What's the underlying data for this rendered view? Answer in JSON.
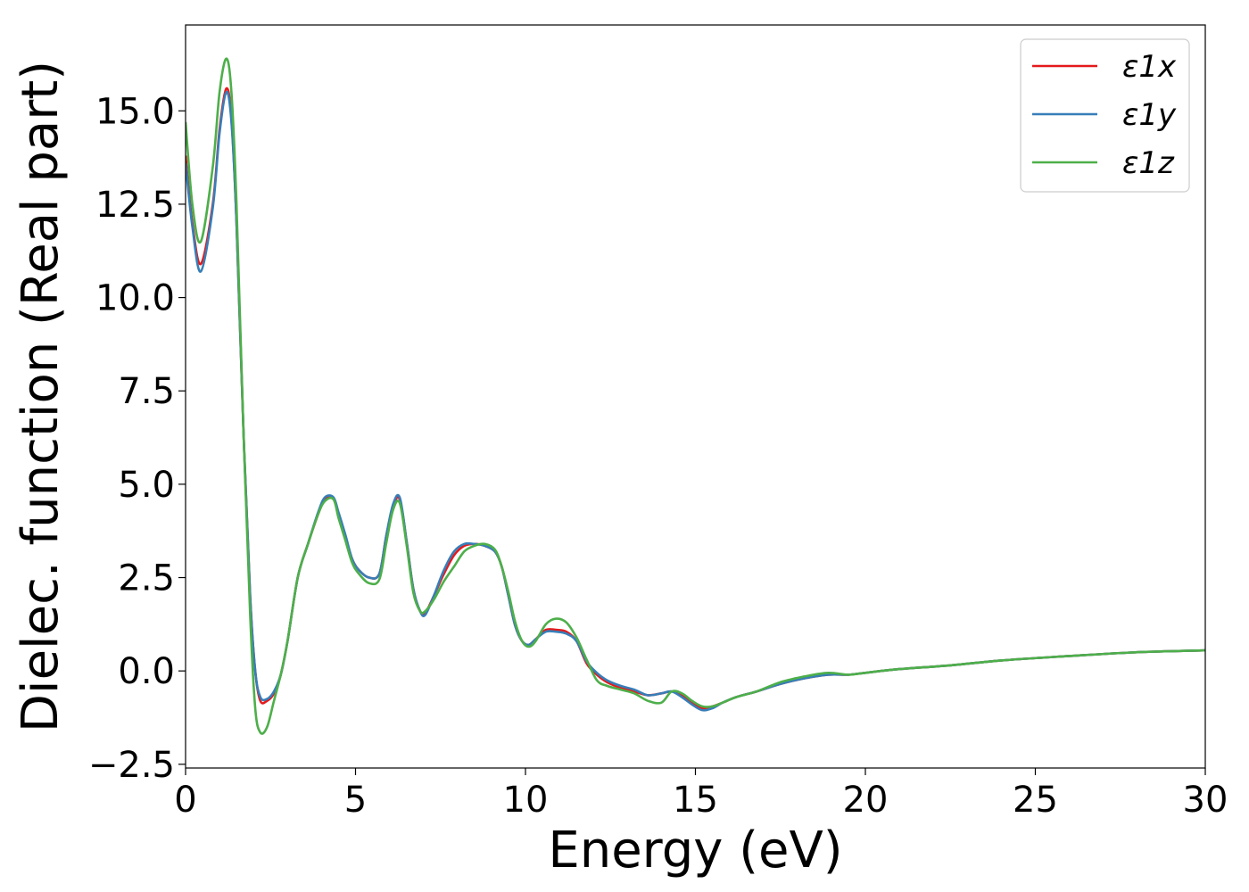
{
  "chart_data": {
    "type": "line",
    "xlabel": "Energy (eV)",
    "ylabel": "Dielec. function (Real part)",
    "xlim": [
      0,
      30
    ],
    "ylim": [
      -2.6,
      17.3
    ],
    "xticks": [
      0,
      5,
      10,
      15,
      20,
      25,
      30
    ],
    "xtick_labels": [
      "0",
      "5",
      "10",
      "15",
      "20",
      "25",
      "30"
    ],
    "yticks": [
      -2.5,
      0,
      2.5,
      5,
      7.5,
      10,
      12.5,
      15
    ],
    "ytick_labels": [
      "−2.5",
      "0.0",
      "2.5",
      "5.0",
      "7.5",
      "10.0",
      "12.5",
      "15.0"
    ],
    "grid": false,
    "legend": "top-right",
    "series": [
      {
        "name": "ε1x",
        "color": "#e41a1c",
        "x": [
          0,
          0.2,
          0.45,
          0.8,
          1.0,
          1.2,
          1.35,
          1.5,
          1.7,
          1.9,
          2.05,
          2.2,
          2.4,
          2.6,
          2.8,
          3.0,
          3.3,
          3.6,
          3.9,
          4.1,
          4.35,
          4.5,
          4.7,
          4.9,
          5.1,
          5.4,
          5.7,
          5.9,
          6.1,
          6.3,
          6.5,
          6.7,
          6.9,
          7.05,
          7.3,
          7.6,
          7.9,
          8.2,
          8.5,
          8.8,
          9.1,
          9.3,
          9.5,
          9.7,
          9.9,
          10.1,
          10.3,
          10.6,
          10.9,
          11.2,
          11.5,
          11.8,
          12.1,
          12.4,
          12.8,
          13.2,
          13.6,
          14.0,
          14.3,
          14.6,
          14.9,
          15.2,
          15.5,
          15.8,
          16.2,
          16.8,
          17.5,
          18.2,
          18.9,
          19.5,
          20.0,
          21.0,
          22.5,
          24.0,
          26.0,
          28.0,
          30.0
        ],
        "y": [
          13.8,
          12.0,
          10.9,
          12.5,
          14.5,
          15.6,
          14.8,
          12.0,
          6.5,
          2.0,
          0.0,
          -0.8,
          -0.8,
          -0.6,
          -0.1,
          0.8,
          2.5,
          3.4,
          4.2,
          4.6,
          4.6,
          4.2,
          3.6,
          3.0,
          2.7,
          2.5,
          2.6,
          3.6,
          4.4,
          4.6,
          3.5,
          2.2,
          1.6,
          1.55,
          2.0,
          2.6,
          3.1,
          3.35,
          3.4,
          3.35,
          3.2,
          2.8,
          2.0,
          1.2,
          0.8,
          0.7,
          0.85,
          1.1,
          1.1,
          1.05,
          0.8,
          0.2,
          -0.1,
          -0.3,
          -0.45,
          -0.55,
          -0.65,
          -0.6,
          -0.55,
          -0.65,
          -0.85,
          -1.0,
          -0.95,
          -0.85,
          -0.7,
          -0.55,
          -0.35,
          -0.2,
          -0.1,
          -0.1,
          -0.05,
          0.05,
          0.15,
          0.28,
          0.4,
          0.5,
          0.55
        ]
      },
      {
        "name": "ε1y",
        "color": "#377eb8",
        "x": [
          0,
          0.2,
          0.45,
          0.8,
          1.0,
          1.2,
          1.35,
          1.5,
          1.7,
          1.9,
          2.05,
          2.2,
          2.4,
          2.6,
          2.8,
          3.0,
          3.3,
          3.6,
          3.9,
          4.1,
          4.35,
          4.5,
          4.7,
          4.9,
          5.1,
          5.4,
          5.7,
          5.9,
          6.1,
          6.3,
          6.5,
          6.7,
          6.9,
          7.05,
          7.3,
          7.6,
          7.9,
          8.2,
          8.5,
          8.8,
          9.1,
          9.3,
          9.5,
          9.7,
          9.9,
          10.1,
          10.3,
          10.6,
          10.9,
          11.2,
          11.5,
          11.8,
          12.1,
          12.4,
          12.8,
          13.2,
          13.6,
          14.0,
          14.3,
          14.6,
          14.9,
          15.2,
          15.5,
          15.8,
          16.2,
          16.8,
          17.5,
          18.2,
          18.9,
          19.5,
          20.0,
          21.0,
          22.5,
          24.0,
          26.0,
          28.0,
          30.0
        ],
        "y": [
          13.6,
          11.9,
          10.7,
          12.4,
          14.4,
          15.5,
          14.7,
          12.0,
          6.5,
          2.0,
          0.0,
          -0.7,
          -0.75,
          -0.55,
          -0.1,
          0.8,
          2.5,
          3.4,
          4.25,
          4.65,
          4.65,
          4.25,
          3.65,
          3.0,
          2.7,
          2.5,
          2.6,
          3.6,
          4.45,
          4.65,
          3.5,
          2.2,
          1.6,
          1.5,
          2.0,
          2.7,
          3.2,
          3.4,
          3.4,
          3.35,
          3.2,
          2.8,
          2.0,
          1.2,
          0.8,
          0.7,
          0.85,
          1.05,
          1.05,
          1.0,
          0.8,
          0.25,
          -0.05,
          -0.25,
          -0.4,
          -0.5,
          -0.65,
          -0.6,
          -0.55,
          -0.7,
          -0.9,
          -1.05,
          -1.0,
          -0.85,
          -0.7,
          -0.55,
          -0.35,
          -0.2,
          -0.1,
          -0.1,
          -0.05,
          0.05,
          0.15,
          0.28,
          0.4,
          0.5,
          0.55
        ]
      },
      {
        "name": "ε1z",
        "color": "#4daf4a",
        "x": [
          0,
          0.2,
          0.45,
          0.8,
          1.0,
          1.2,
          1.35,
          1.5,
          1.7,
          1.9,
          2.05,
          2.2,
          2.4,
          2.6,
          2.8,
          3.0,
          3.3,
          3.6,
          3.9,
          4.1,
          4.35,
          4.5,
          4.7,
          4.9,
          5.1,
          5.4,
          5.7,
          5.9,
          6.1,
          6.3,
          6.5,
          6.7,
          6.9,
          7.05,
          7.3,
          7.6,
          7.9,
          8.2,
          8.5,
          8.8,
          9.1,
          9.3,
          9.5,
          9.7,
          9.9,
          10.1,
          10.3,
          10.6,
          10.9,
          11.2,
          11.5,
          11.8,
          12.1,
          12.4,
          12.8,
          13.2,
          13.6,
          14.0,
          14.3,
          14.6,
          14.9,
          15.2,
          15.5,
          15.8,
          16.2,
          16.8,
          17.5,
          18.2,
          18.9,
          19.5,
          20.0,
          21.0,
          22.5,
          24.0,
          26.0,
          28.0,
          30.0
        ],
        "y": [
          14.7,
          12.5,
          11.5,
          13.5,
          15.5,
          16.4,
          15.5,
          12.5,
          6.5,
          1.5,
          -1.0,
          -1.65,
          -1.5,
          -0.8,
          -0.1,
          0.8,
          2.5,
          3.4,
          4.2,
          4.55,
          4.6,
          4.1,
          3.5,
          2.9,
          2.6,
          2.35,
          2.45,
          3.4,
          4.3,
          4.5,
          3.4,
          2.1,
          1.6,
          1.6,
          1.9,
          2.4,
          2.8,
          3.2,
          3.35,
          3.4,
          3.25,
          2.8,
          2.1,
          1.3,
          0.8,
          0.65,
          0.8,
          1.25,
          1.4,
          1.3,
          0.9,
          0.3,
          -0.25,
          -0.4,
          -0.5,
          -0.6,
          -0.8,
          -0.85,
          -0.55,
          -0.6,
          -0.8,
          -0.95,
          -0.95,
          -0.85,
          -0.7,
          -0.55,
          -0.3,
          -0.15,
          -0.05,
          -0.1,
          -0.05,
          0.05,
          0.15,
          0.28,
          0.4,
          0.5,
          0.55
        ]
      }
    ]
  }
}
